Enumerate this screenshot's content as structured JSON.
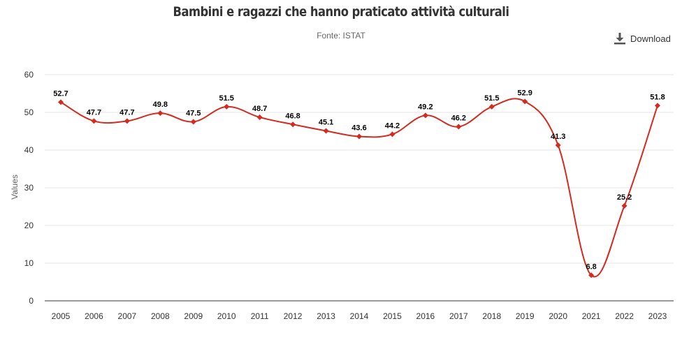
{
  "header": {
    "title": "Bambini e ragazzi che hanno praticato attività culturali",
    "subtitle": "Fonte: ISTAT"
  },
  "toolbar": {
    "download_label": "Download",
    "download_icon": "download-icon"
  },
  "colors": {
    "series": "#d42a20",
    "grid": "#e6e6e6",
    "axis": "#333333",
    "tick_text": "#333333",
    "axis_title": "#666666",
    "label_text": "#000000"
  },
  "chart_data": {
    "type": "line",
    "title": "Bambini e ragazzi che hanno praticato attività culturali",
    "subtitle": "Fonte: ISTAT",
    "xlabel": "",
    "ylabel": "Values",
    "ylim": [
      0,
      60
    ],
    "yticks": [
      0,
      10,
      20,
      30,
      40,
      50,
      60
    ],
    "grid": true,
    "legend": "none",
    "categories": [
      "2005",
      "2006",
      "2007",
      "2008",
      "2009",
      "2010",
      "2011",
      "2012",
      "2013",
      "2014",
      "2015",
      "2016",
      "2017",
      "2018",
      "2019",
      "2020",
      "2021",
      "2022",
      "2023"
    ],
    "series": [
      {
        "name": "Values",
        "values": [
          52.7,
          47.7,
          47.7,
          49.8,
          47.5,
          51.5,
          48.7,
          46.8,
          45.1,
          43.6,
          44.2,
          49.2,
          46.2,
          51.5,
          52.9,
          41.3,
          6.8,
          25.2,
          51.8
        ],
        "labels": [
          "52.7",
          "47.7",
          "47.7",
          "49.8",
          "47.5",
          "51.5",
          "48.7",
          "46.8",
          "45.1",
          "43.6",
          "44.2",
          "49.2",
          "46.2",
          "51.5",
          "52.9",
          "41.3",
          "6.8",
          "25.2",
          "51.8"
        ]
      }
    ]
  }
}
